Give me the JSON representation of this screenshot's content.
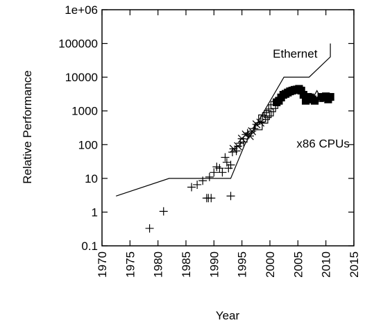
{
  "chart_data": {
    "type": "line",
    "xlabel": "Year",
    "ylabel": "Relative Performance",
    "xlim": [
      1970,
      2015
    ],
    "ylim": [
      0.1,
      1000000
    ],
    "yscale": "log",
    "grid": false,
    "legend": "none",
    "x_ticks": [
      "1970",
      "1975",
      "1980",
      "1985",
      "1990",
      "1995",
      "2000",
      "2005",
      "2010",
      "2015"
    ],
    "y_ticks": [
      "0.1",
      "1",
      "10",
      "100",
      "1000",
      "10000",
      "100000",
      "1e+06"
    ],
    "annotations": [
      {
        "text": "Ethernet",
        "x": 2004.5,
        "y": 50000
      },
      {
        "text": "x86 CPUs",
        "x": 2009.5,
        "y": 110
      }
    ],
    "series": [
      {
        "name": "Ethernet",
        "style": "line",
        "x": [
          1972.5,
          1982,
          1993,
          1995.5,
          2002.5,
          2007,
          2010.8,
          2010.8
        ],
        "y": [
          3,
          10,
          10,
          100,
          10000,
          10000,
          40000,
          100000
        ]
      },
      {
        "name": "x86 CPUs",
        "style": "markers",
        "x": [
          1978.5,
          1981,
          1986,
          1987,
          1988,
          1988.7,
          1989,
          1989.2,
          1989.5,
          1990,
          1990.5,
          1991,
          1991.5,
          1992,
          1992.3,
          1992.6,
          1993,
          1993,
          1993.3,
          1993.5,
          1994,
          1994.3,
          1994.7,
          1995,
          1995.3,
          1995.7,
          1996,
          1996.4,
          1996.8,
          1997.2,
          1997.6,
          1998,
          1998.3,
          1998.6,
          1999,
          1999.3,
          1999.6,
          2000,
          2000.4,
          2000.8,
          2001.2,
          2001.6,
          2002,
          2002.4,
          2002.8,
          2003.2,
          2003.6,
          2004,
          2004.4,
          2004.8,
          2005.2,
          2005.6,
          2006,
          2006.4,
          2006.8,
          2007.2,
          2007.6,
          2008,
          2008.4,
          2008.8,
          2009.2,
          2009.6,
          2010,
          2010.4,
          2010.8
        ],
        "y": [
          0.33,
          1.05,
          5.5,
          6.5,
          8.5,
          2.6,
          2.6,
          11,
          2.6,
          15,
          22,
          20,
          15,
          42,
          30,
          20,
          25,
          3,
          60,
          75,
          65,
          90,
          110,
          150,
          120,
          200,
          220,
          180,
          250,
          300,
          400,
          350,
          450,
          600,
          550,
          700,
          800,
          900,
          1200,
          1500,
          1800,
          2000,
          2500,
          3000,
          3200,
          3500,
          3800,
          4000,
          4200,
          4300,
          4500,
          4000,
          3000,
          2000,
          2600,
          2500,
          2200,
          2000,
          3000,
          2400,
          2600,
          2500,
          2700,
          2200,
          2600
        ],
        "markers": [
          "+",
          "+",
          "+",
          "+",
          "+",
          "+",
          "+",
          "+",
          "+",
          "+",
          "+",
          "+",
          "+",
          "+",
          "+",
          "+",
          "+",
          "+",
          "+",
          "x",
          "+",
          "x",
          "+",
          "x",
          "+",
          "x",
          "+",
          "x",
          "x",
          "+",
          "x",
          "s",
          "x",
          "s",
          "s",
          "s",
          "s",
          "s",
          "s",
          "s",
          "s",
          "s",
          "s",
          "s",
          "s",
          "s",
          "s",
          "s",
          "s",
          "s",
          "s",
          "s",
          "s",
          "s",
          "s",
          "s",
          "s",
          "s",
          "t",
          "t",
          "s",
          "s",
          "s",
          "s",
          "s"
        ]
      }
    ]
  }
}
